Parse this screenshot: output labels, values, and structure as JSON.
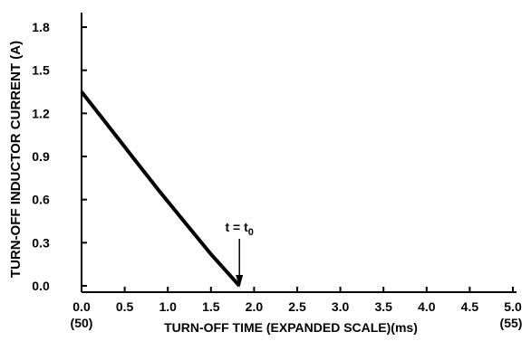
{
  "chart_data": {
    "type": "line",
    "title": "",
    "xlabel": "TURN-OFF TIME (EXPANDED SCALE)(ms)",
    "ylabel": "TURN-OFF INDUCTOR CURRENT (A)",
    "xlim": [
      0,
      5
    ],
    "ylim": [
      0,
      1.8
    ],
    "x_ticks": [
      "0.0",
      "0.5",
      "1.0",
      "1.5",
      "2.0",
      "2.5",
      "3.0",
      "3.5",
      "4.0",
      "4.5",
      "5.0"
    ],
    "y_ticks": [
      "0.0",
      "0.3",
      "0.6",
      "0.9",
      "1.2",
      "1.5",
      "1.8"
    ],
    "x_tick_values": [
      0,
      0.5,
      1,
      1.5,
      2,
      2.5,
      3,
      3.5,
      4,
      4.5,
      5
    ],
    "y_tick_values": [
      0,
      0.3,
      0.6,
      0.9,
      1.2,
      1.5,
      1.8
    ],
    "x_secondary_left": "(50)",
    "x_secondary_right": "(55)",
    "series": [
      {
        "x": [
          0,
          0.3,
          0.6,
          0.9,
          1.2,
          1.5,
          1.83
        ],
        "y": [
          1.35,
          1.12,
          0.89,
          0.66,
          0.44,
          0.22,
          0.0
        ]
      }
    ],
    "annotation": {
      "text_main": "t = t",
      "text_sub": "0",
      "x": 1.83,
      "y": 0
    },
    "grid": false,
    "legend": "none"
  }
}
